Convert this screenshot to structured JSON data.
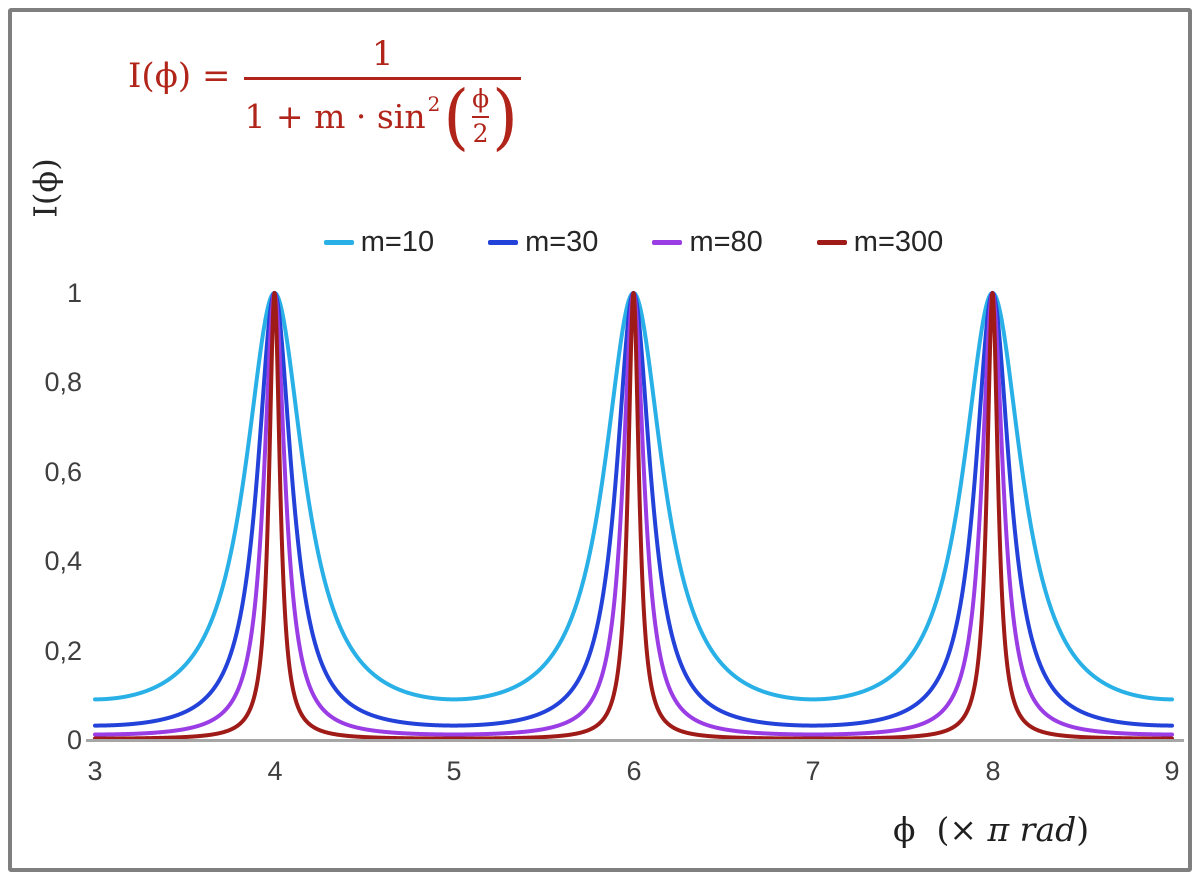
{
  "figure": {
    "background": "#ffffff",
    "border_color": "#7f7f7f"
  },
  "formula": {
    "lhs": "I(ϕ) =",
    "numerator": "1",
    "den_main": "1 + m · sin",
    "den_sup": "2",
    "inner_numerator": "ϕ",
    "inner_denominator": "2",
    "color": "#b1241a"
  },
  "axes": {
    "x": {
      "label_prefix": "ϕ  (× ",
      "label_italic": "π rad",
      "label_suffix": ")",
      "ticks": [
        "3",
        "4",
        "5",
        "6",
        "7",
        "8",
        "9"
      ]
    },
    "y": {
      "label": "I(ϕ)",
      "ticks": [
        "1",
        "0,8",
        "0,6",
        "0,4",
        "0,2",
        "0"
      ]
    }
  },
  "chart_data": {
    "type": "line",
    "title": "",
    "xlabel": "ϕ (× π rad)",
    "ylabel": "I(ϕ)",
    "formula": "I(phi) = 1 / (1 + m * sin^2(phi/2))",
    "x_units": "multiples of π rad",
    "x_range": [
      3,
      9
    ],
    "ylim": [
      0,
      1
    ],
    "x_ticks": [
      3,
      4,
      5,
      6,
      7,
      8,
      9
    ],
    "y_ticks": [
      0,
      0.2,
      0.4,
      0.6,
      0.8,
      1
    ],
    "peaks_at_x": [
      4,
      6,
      8
    ],
    "peak_value": 1,
    "grid": false,
    "legend_position": "top-center",
    "series": [
      {
        "name": "m=10",
        "m": 10,
        "color": "#29b0e6",
        "min_value": 0.0909
      },
      {
        "name": "m=30",
        "m": 30,
        "color": "#2342d9",
        "min_value": 0.0323
      },
      {
        "name": "m=80",
        "m": 80,
        "color": "#9a3de4",
        "min_value": 0.0123
      },
      {
        "name": "m=300",
        "m": 300,
        "color": "#9e1b17",
        "min_value": 0.0033
      }
    ],
    "samples_per_unit": 500
  },
  "axis_style": {
    "axis_line_color": "#a6a6a6",
    "tick_text_color": "#3f3f3f"
  }
}
